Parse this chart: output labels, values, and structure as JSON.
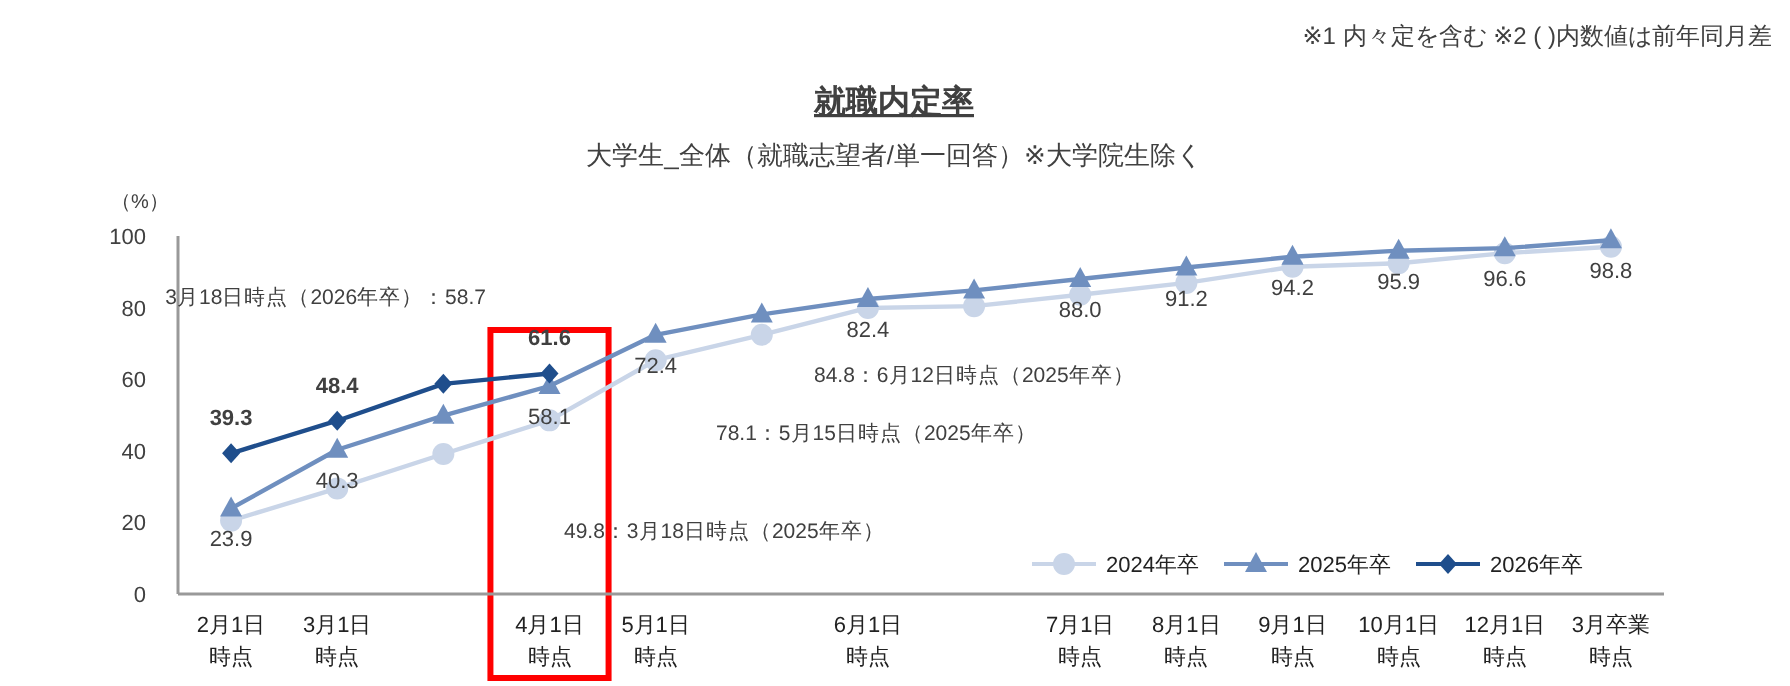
{
  "chart_data": {
    "type": "line",
    "title": "就職内定率",
    "subtitle": "大学生_全体（就職志望者/単一回答）※大学院生除く",
    "ylabel": "（%）",
    "categories": [
      "2月1日時点",
      "3月1日時点",
      null,
      "4月1日時点",
      "5月1日時点",
      null,
      "6月1日時点",
      null,
      "7月1日時点",
      "8月1日時点",
      "9月1日時点",
      "10月1日時点",
      "12月1日時点",
      "3月卒業時点"
    ],
    "ylim": [
      0,
      100
    ],
    "yticks": [
      0,
      20,
      40,
      60,
      80,
      100
    ],
    "series": [
      {
        "name": "2024年卒",
        "color": "#c9d5e8",
        "marker": "circle",
        "values": [
          20.5,
          29.5,
          39.1,
          48.5,
          65.3,
          72.4,
          79.9,
          80.4,
          83.6,
          86.9,
          91.4,
          92.4,
          95.2,
          97.0
        ]
      },
      {
        "name": "2025年卒",
        "color": "#6f8fbf",
        "marker": "triangle",
        "values": [
          23.9,
          40.3,
          49.8,
          58.1,
          72.4,
          78.1,
          82.4,
          84.8,
          88.0,
          91.2,
          94.2,
          95.9,
          96.6,
          98.8
        ],
        "value_labels": [
          "23.9",
          "40.3",
          null,
          "58.1",
          "72.4",
          null,
          "82.4",
          null,
          "88.0",
          "91.2",
          "94.2",
          "95.9",
          "96.6",
          "98.8"
        ]
      },
      {
        "name": "2026年卒",
        "color": "#1f4e8c",
        "marker": "diamond",
        "values": [
          39.3,
          48.4,
          58.7,
          61.6,
          null,
          null,
          null,
          null,
          null,
          null,
          null,
          null,
          null,
          null
        ],
        "value_labels": [
          "39.3",
          "48.4",
          null,
          "61.6",
          null,
          null,
          null,
          null,
          null,
          null,
          null,
          null,
          null,
          null
        ]
      }
    ],
    "legend": "bottom right",
    "annotations": [
      "※1 内々定を含む ※2 ( )内数値は前年同月差",
      "3月18日時点（2026年卒）：58.7",
      "49.8：3月18日時点（2025年卒）",
      "78.1：5月15日時点（2025年卒）",
      "84.8：6月12日時点（2025年卒）"
    ]
  }
}
